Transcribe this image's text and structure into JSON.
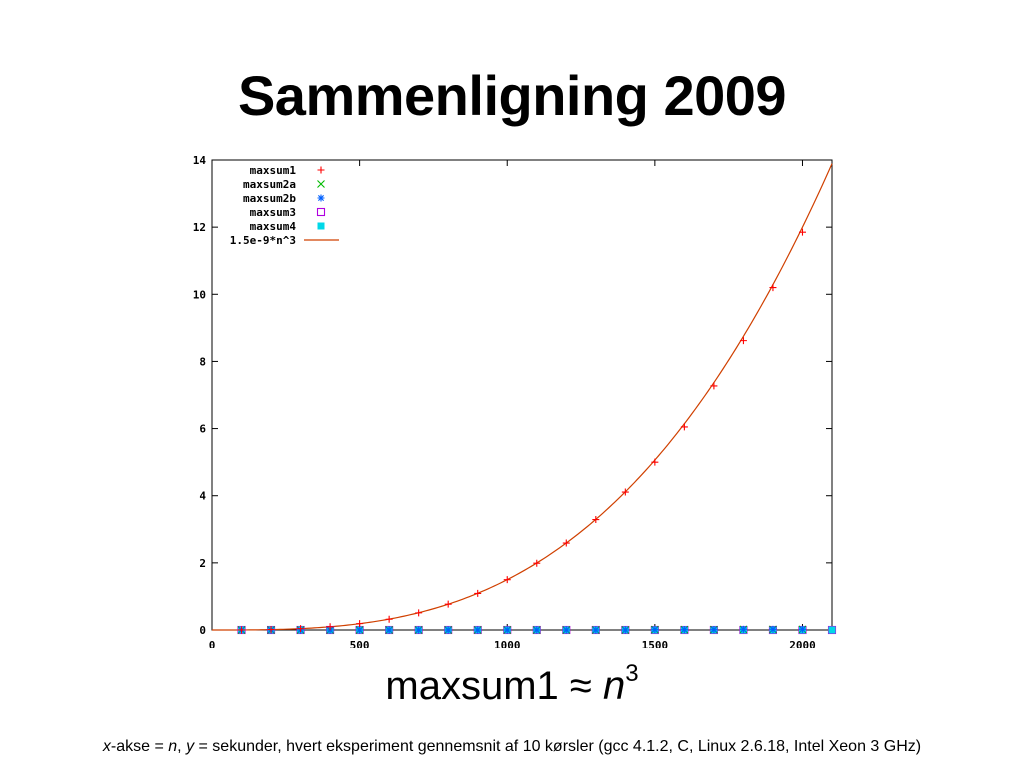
{
  "slide": {
    "title": "Sammenligning 2009",
    "caption_text": "maxsum1 ≈ ",
    "caption_var": "n",
    "caption_exp": "3",
    "footnote": {
      "x": "x",
      "part1": "-akse = ",
      "n": "n",
      "part2": ", ",
      "y": "y",
      "part3": " = sekunder, hvert eksperiment gennemsnit af 10 kørsler (gcc 4.1.2, C, Linux 2.6.18, Intel Xeon 3 GHz)"
    }
  },
  "chart_data": {
    "type": "scatter",
    "title": "",
    "xlabel": "",
    "ylabel": "",
    "xlim": [
      0,
      2100
    ],
    "ylim": [
      0,
      14
    ],
    "xticks": [
      0,
      500,
      1000,
      1500,
      2000
    ],
    "yticks": [
      0,
      2,
      4,
      6,
      8,
      10,
      12,
      14
    ],
    "grid": false,
    "legend_position": "top-left",
    "series": [
      {
        "name": "maxsum1",
        "marker": "plus",
        "color": "#ff0000",
        "x": [
          100,
          200,
          300,
          400,
          500,
          600,
          700,
          800,
          900,
          1000,
          1100,
          1200,
          1300,
          1400,
          1500,
          1600,
          1700,
          1800,
          1900,
          2000
        ],
        "y": [
          0.0015,
          0.012,
          0.04,
          0.096,
          0.19,
          0.32,
          0.51,
          0.77,
          1.09,
          1.5,
          1.99,
          2.59,
          3.29,
          4.11,
          5.0,
          6.05,
          7.27,
          8.62,
          10.2,
          11.85
        ]
      },
      {
        "name": "maxsum2a",
        "marker": "cross",
        "color": "#00bb00",
        "x": [
          100,
          200,
          300,
          400,
          500,
          600,
          700,
          800,
          900,
          1000,
          1100,
          1200,
          1300,
          1400,
          1500,
          1600,
          1700,
          1800,
          1900,
          2000
        ],
        "y": [
          0.0,
          0.0,
          0.0,
          0.0,
          0.0,
          0.0,
          0.0,
          0.0,
          0.0,
          0.0,
          0.0,
          0.0,
          0.0,
          0.0,
          0.01,
          0.01,
          0.01,
          0.02,
          0.02,
          0.02
        ]
      },
      {
        "name": "maxsum2b",
        "marker": "star",
        "color": "#0060ff",
        "x": [
          100,
          200,
          300,
          400,
          500,
          600,
          700,
          800,
          900,
          1000,
          1100,
          1200,
          1300,
          1400,
          1500,
          1600,
          1700,
          1800,
          1900,
          2000
        ],
        "y": [
          0.0,
          0.0,
          0.0,
          0.0,
          0.0,
          0.0,
          0.0,
          0.0,
          0.0,
          0.0,
          0.0,
          0.0,
          0.0,
          0.0,
          0.01,
          0.01,
          0.01,
          0.02,
          0.02,
          0.02
        ]
      },
      {
        "name": "maxsum3",
        "marker": "open-square",
        "color": "#b000e0",
        "x": [
          100,
          200,
          300,
          400,
          500,
          600,
          700,
          800,
          900,
          1000,
          1100,
          1200,
          1300,
          1400,
          1500,
          1600,
          1700,
          1800,
          1900,
          2000,
          2100
        ],
        "y": [
          0,
          0,
          0,
          0,
          0,
          0,
          0,
          0,
          0,
          0,
          0,
          0,
          0,
          0,
          0,
          0,
          0,
          0,
          0,
          0,
          0
        ]
      },
      {
        "name": "maxsum4",
        "marker": "filled-square",
        "color": "#00d8e8",
        "x": [
          100,
          200,
          300,
          400,
          500,
          600,
          700,
          800,
          900,
          1000,
          1100,
          1200,
          1300,
          1400,
          1500,
          1600,
          1700,
          1800,
          1900,
          2000,
          2100
        ],
        "y": [
          0,
          0,
          0,
          0,
          0,
          0,
          0,
          0,
          0,
          0,
          0,
          0,
          0,
          0,
          0,
          0,
          0,
          0,
          0,
          0,
          0
        ]
      }
    ],
    "fit": {
      "name": "1.5e-9*n^3",
      "coefficient": 1.5e-09,
      "exponent": 3,
      "color": "#d04000"
    }
  }
}
